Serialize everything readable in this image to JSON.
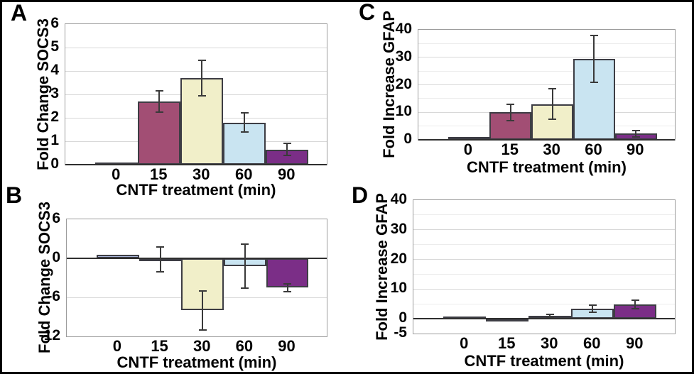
{
  "figure_title": "",
  "colors": {
    "bar_palette": [
      "#a9b5da",
      "#a24e74",
      "#f1efc9",
      "#c9e4f1",
      "#7b2e87"
    ],
    "bar_border": "#3d3d44",
    "error_bar": "#3a3a3a",
    "grid_major": "#d8d8d8",
    "grid_minor": "#ececec",
    "plot_frame": "#9c9c9c",
    "zero_axis": "#2f2f2f",
    "text": "#000000",
    "background": "#ffffff",
    "figure_border": "#000000"
  },
  "chart_data": [
    {
      "type": "bar",
      "panel_label": "A",
      "ylabel": "Fold Change SOCS3",
      "xlabel": "CNTF treatment (min)",
      "categories": [
        "0",
        "15",
        "30",
        "60",
        "90"
      ],
      "values": [
        0.1,
        2.7,
        3.7,
        1.8,
        0.65
      ],
      "errors": [
        0,
        0.45,
        0.75,
        0.4,
        0.25
      ],
      "ylim": [
        0,
        6
      ],
      "yticks": [
        0,
        1,
        2,
        3,
        4,
        5,
        6
      ],
      "grid_minor_step": null,
      "grid": true,
      "legend": "none"
    },
    {
      "type": "bar",
      "panel_label": "B",
      "ylabel": "Fold Change SOCS3",
      "xlabel": "CNTF treatment (min)",
      "categories": [
        "0",
        "15",
        "30",
        "60",
        "90"
      ],
      "values": [
        0.6,
        -0.2,
        -8,
        -1.2,
        -4.5
      ],
      "errors": [
        0,
        1.9,
        3,
        3.4,
        0.6
      ],
      "ylim": [
        -12,
        6
      ],
      "yticks": [
        -12,
        -6,
        0,
        6
      ],
      "grid_minor_step": null,
      "grid": true,
      "legend": "none"
    },
    {
      "type": "bar",
      "panel_label": "C",
      "ylabel": "Fold Increase GFAP",
      "xlabel": "CNTF treatment (min)",
      "categories": [
        "0",
        "15",
        "30",
        "60",
        "90"
      ],
      "values": [
        1,
        10,
        13,
        29.5,
        2.2
      ],
      "errors": [
        0,
        3,
        5.5,
        8.5,
        1.2
      ],
      "ylim": [
        0,
        40
      ],
      "yticks": [
        0,
        10,
        20,
        30,
        40
      ],
      "grid_minor_step": 5,
      "grid": true,
      "legend": "none"
    },
    {
      "type": "bar",
      "panel_label": "D",
      "ylabel": "Fold Increase GFAP",
      "xlabel": "CNTF treatment (min)",
      "categories": [
        "0",
        "15",
        "30",
        "60",
        "90"
      ],
      "values": [
        0.8,
        -0.5,
        1.0,
        3.3,
        4.8
      ],
      "errors": [
        0,
        0,
        0.4,
        1.2,
        1.5
      ],
      "ylim": [
        -5,
        40
      ],
      "yticks": [
        -5,
        0,
        10,
        20,
        30,
        40
      ],
      "grid_minor_step": 5,
      "grid": true,
      "legend": "none"
    }
  ]
}
